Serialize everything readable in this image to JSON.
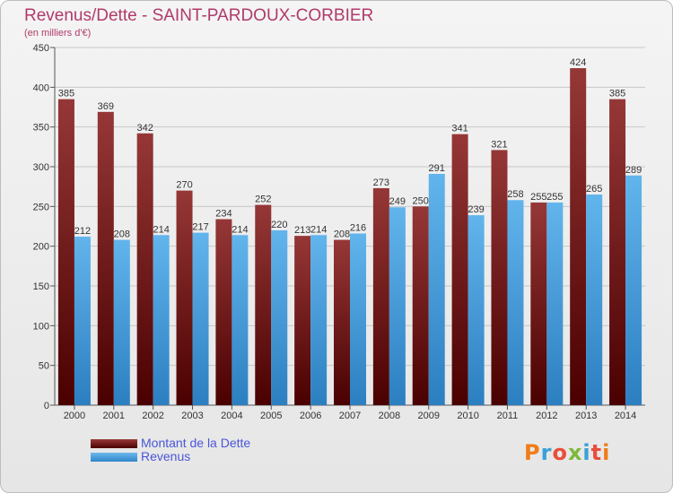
{
  "header": {
    "title": "Revenus/Dette - SAINT-PARDOUX-CORBIER",
    "subtitle": "(en milliers d'€)"
  },
  "legend": {
    "debt_label": "Montant de la Dette",
    "revenue_label": "Revenus"
  },
  "logo": {
    "text": "Proxiti",
    "letter_colors": [
      "#f07c1a",
      "#3aa0d8",
      "#e94e3c",
      "#7bb93b",
      "#3aa0d8",
      "#e94e3c",
      "#f07c1a"
    ]
  },
  "colors": {
    "debt_top": "#9a3b3b",
    "debt_bottom": "#4a0000",
    "revenue_top": "#6bb9ee",
    "revenue_bottom": "#2f86c8",
    "grid": "#c8c8c8",
    "title": "#b03a6a",
    "legend_text": "#4a56d8"
  },
  "chart_data": {
    "type": "bar",
    "title": "Revenus/Dette - SAINT-PARDOUX-CORBIER",
    "subtitle": "(en milliers d'€)",
    "categories": [
      "2000",
      "2001",
      "2002",
      "2003",
      "2004",
      "2005",
      "2006",
      "2007",
      "2008",
      "2009",
      "2010",
      "2011",
      "2012",
      "2013",
      "2014"
    ],
    "series": [
      {
        "name": "Montant de la Dette",
        "values": [
          385,
          369,
          342,
          270,
          234,
          252,
          213,
          208,
          273,
          250,
          341,
          321,
          255,
          424,
          385
        ]
      },
      {
        "name": "Revenus",
        "values": [
          212,
          208,
          214,
          217,
          214,
          220,
          214,
          216,
          249,
          291,
          239,
          258,
          255,
          265,
          289
        ]
      }
    ],
    "ylim": [
      0,
      450
    ],
    "yticks": [
      0,
      50,
      100,
      150,
      200,
      250,
      300,
      350,
      400,
      450
    ],
    "grid": true,
    "legend_position": "bottom-left"
  }
}
